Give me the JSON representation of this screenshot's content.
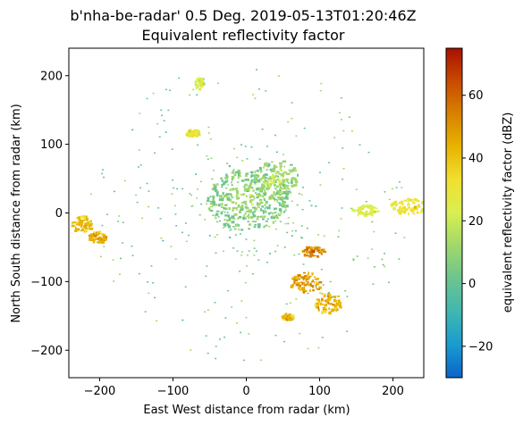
{
  "chart_data": {
    "type": "heatmap",
    "title_line1": "b'nha-be-radar' 0.5 Deg. 2019-05-13T01:20:46Z",
    "title_line2": "Equivalent reflectivity factor",
    "xlabel": "East West distance from radar (km)",
    "ylabel": "North South distance from radar (km)",
    "xlim": [
      -242,
      242
    ],
    "ylim": [
      -240,
      240
    ],
    "xticks": [
      -200,
      -100,
      0,
      100,
      200
    ],
    "yticks": [
      -200,
      -100,
      0,
      100,
      200
    ],
    "xtick_labels": [
      "−200",
      "−100",
      "0",
      "100",
      "200"
    ],
    "ytick_labels": [
      "−200",
      "−100",
      "0",
      "100",
      "200"
    ],
    "colorbar": {
      "label": "equivalent reflectivity factor (dBZ)",
      "range": [
        -30,
        75
      ],
      "ticks": [
        -20,
        0,
        20,
        40,
        60
      ],
      "tick_labels": [
        "−20",
        "0",
        "20",
        "40",
        "60"
      ],
      "colormap": [
        "#0a64c8",
        "#1a9bd0",
        "#3fb7b0",
        "#6cc490",
        "#9fd86a",
        "#d8ef52",
        "#f0e030",
        "#e8b400",
        "#d88200",
        "#c84a00",
        "#a81000"
      ]
    },
    "echo_regions": [
      {
        "x": 0,
        "y": 20,
        "rx": 55,
        "ry": 45,
        "dbz": 5
      },
      {
        "x": 40,
        "y": 50,
        "rx": 30,
        "ry": 30,
        "dbz": 8
      },
      {
        "x": 220,
        "y": 10,
        "rx": 25,
        "ry": 12,
        "dbz": 28
      },
      {
        "x": 160,
        "y": 5,
        "rx": 20,
        "ry": 8,
        "dbz": 22
      },
      {
        "x": -225,
        "y": -15,
        "rx": 14,
        "ry": 12,
        "dbz": 38
      },
      {
        "x": -205,
        "y": -35,
        "rx": 12,
        "ry": 10,
        "dbz": 42
      },
      {
        "x": 90,
        "y": -55,
        "rx": 15,
        "ry": 8,
        "dbz": 50
      },
      {
        "x": 80,
        "y": -100,
        "rx": 22,
        "ry": 15,
        "dbz": 45
      },
      {
        "x": 110,
        "y": -130,
        "rx": 18,
        "ry": 15,
        "dbz": 42
      },
      {
        "x": 55,
        "y": -150,
        "rx": 8,
        "ry": 5,
        "dbz": 40
      },
      {
        "x": -75,
        "y": 118,
        "rx": 10,
        "ry": 5,
        "dbz": 30
      },
      {
        "x": -65,
        "y": 190,
        "rx": 6,
        "ry": 8,
        "dbz": 20
      }
    ]
  }
}
